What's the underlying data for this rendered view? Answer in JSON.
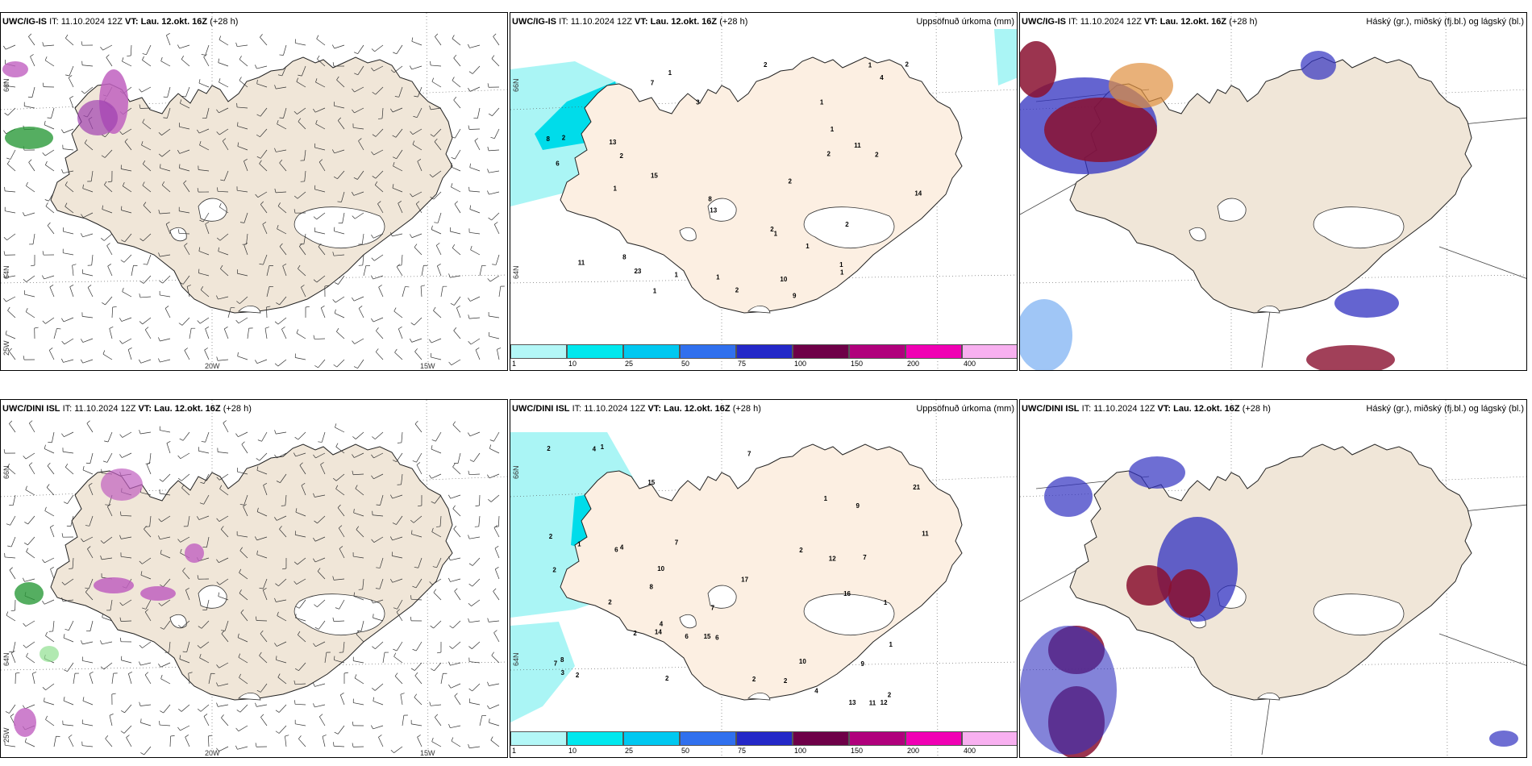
{
  "headers": [
    {
      "model": "UWC/IG-IS",
      "it": "IT: 11.10.2024 12Z",
      "vt": "VT: Lau. 12.okt. 16Z",
      "lead": "(+28 h)",
      "unit": ""
    },
    {
      "model": "UWC/IG-IS",
      "it": "IT: 11.10.2024 12Z",
      "vt": "VT: Lau. 12.okt. 16Z",
      "lead": "(+28 h)",
      "unit": "Uppsöfnuð úrkoma (mm)"
    },
    {
      "model": "UWC/IG-IS",
      "it": "IT: 11.10.2024 12Z",
      "vt": "VT: Lau. 12.okt. 16Z",
      "lead": "(+28 h)",
      "unit": "Háský (gr.), miðský (fj.bl.) og lágský (bl.)"
    },
    {
      "model": "UWC/DINI ISL",
      "it": "IT: 11.10.2024 12Z",
      "vt": "VT: Lau. 12.okt. 16Z",
      "lead": "(+28 h)",
      "unit": ""
    },
    {
      "model": "UWC/DINI ISL",
      "it": "IT: 11.10.2024 12Z",
      "vt": "VT: Lau. 12.okt. 16Z",
      "lead": "(+28 h)",
      "unit": "Uppsöfnuð úrkoma (mm)"
    },
    {
      "model": "UWC/DINI ISL",
      "it": "IT: 11.10.2024 12Z",
      "vt": "VT: Lau. 12.okt. 16Z",
      "lead": "(+28 h)",
      "unit": "Háský (gr.), miðský (fj.bl.) og lágský (bl.)"
    }
  ],
  "axis": {
    "lon_a": "20W",
    "lon_b": "15W",
    "lat_a": "66N",
    "lat_b": "64N",
    "lat_c": "25W"
  },
  "colorbar": {
    "labels": [
      "1",
      "10",
      "25",
      "50",
      "75",
      "100",
      "150",
      "200",
      "400"
    ],
    "colors": [
      "#b3f7f7",
      "#00e8ee",
      "#00c8f0",
      "#3070ee",
      "#2428c8",
      "#6e0048",
      "#b0007c",
      "#f000b4",
      "#f8b0f0"
    ]
  },
  "colors": {
    "land": "#f0e6d8",
    "land_precip": "#fcefe2",
    "coast": "#333333",
    "precip_light": "#aaf5f5",
    "precip_mid": "#00dcea"
  },
  "precip_labels": {
    "ig": [
      "9",
      "7",
      "8",
      "13",
      "11",
      "10",
      "14",
      "15",
      "13",
      "23",
      "11",
      "8",
      "8",
      "2",
      "2",
      "1",
      "6",
      "4",
      "2",
      "2",
      "1",
      "1",
      "1",
      "1",
      "2",
      "1",
      "1",
      "2",
      "2",
      "3",
      "1",
      "2",
      "1",
      "1",
      "1",
      "1",
      "2",
      "2"
    ],
    "dini": [
      "7",
      "6",
      "4",
      "16",
      "12",
      "15",
      "15",
      "8",
      "14",
      "12",
      "7",
      "7",
      "2",
      "13",
      "10",
      "10",
      "17",
      "11",
      "21",
      "7",
      "11",
      "4",
      "2",
      "2",
      "9",
      "2",
      "2",
      "8",
      "9",
      "7",
      "4",
      "6",
      "2",
      "1",
      "1",
      "2",
      "1",
      "1",
      "2",
      "2",
      "2",
      "2",
      "1",
      "4",
      "6",
      "3"
    ]
  }
}
